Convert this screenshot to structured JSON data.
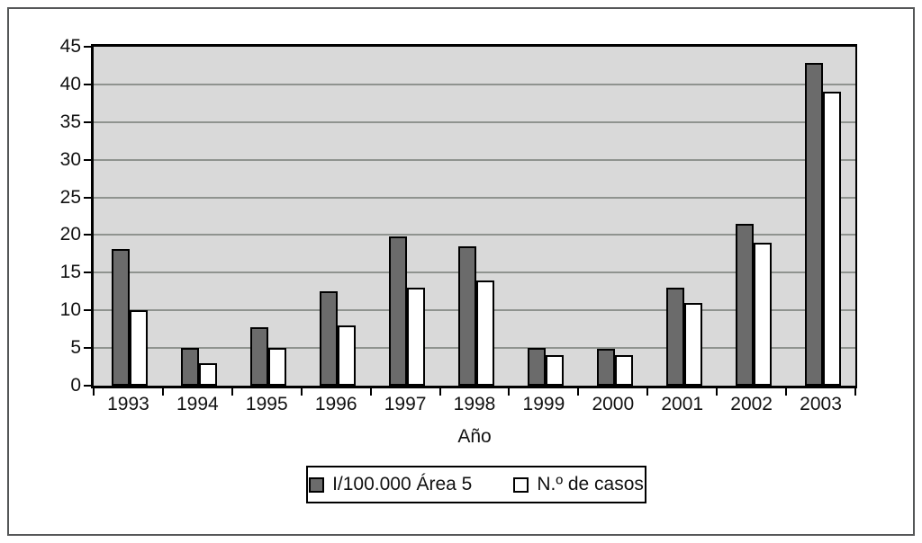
{
  "chart_data": {
    "type": "bar",
    "title": "",
    "xlabel": "Año",
    "ylabel": "",
    "categories": [
      "1993",
      "1994",
      "1995",
      "1996",
      "1997",
      "1998",
      "1999",
      "2000",
      "2001",
      "2002",
      "2003"
    ],
    "series": [
      {
        "name": "I/100.000 Área 5",
        "color": "#6b6b6b",
        "values": [
          18.1,
          5,
          7.7,
          12.5,
          19.8,
          18.5,
          5,
          4.9,
          13,
          21.5,
          42.9
        ]
      },
      {
        "name": "N.º de casos",
        "color": "#ffffff",
        "values": [
          10,
          3,
          5,
          8,
          13,
          14,
          4,
          4,
          11,
          19,
          39
        ]
      }
    ],
    "ylim": [
      0,
      45
    ],
    "ytick_step": 5,
    "yticks": [
      0,
      5,
      10,
      15,
      20,
      25,
      30,
      35,
      40,
      45
    ],
    "grid": true,
    "legend_position": "bottom",
    "plot_background": "#d9d9d9",
    "gridline_color": "#8f938f",
    "bar_border_color": "#000000"
  }
}
